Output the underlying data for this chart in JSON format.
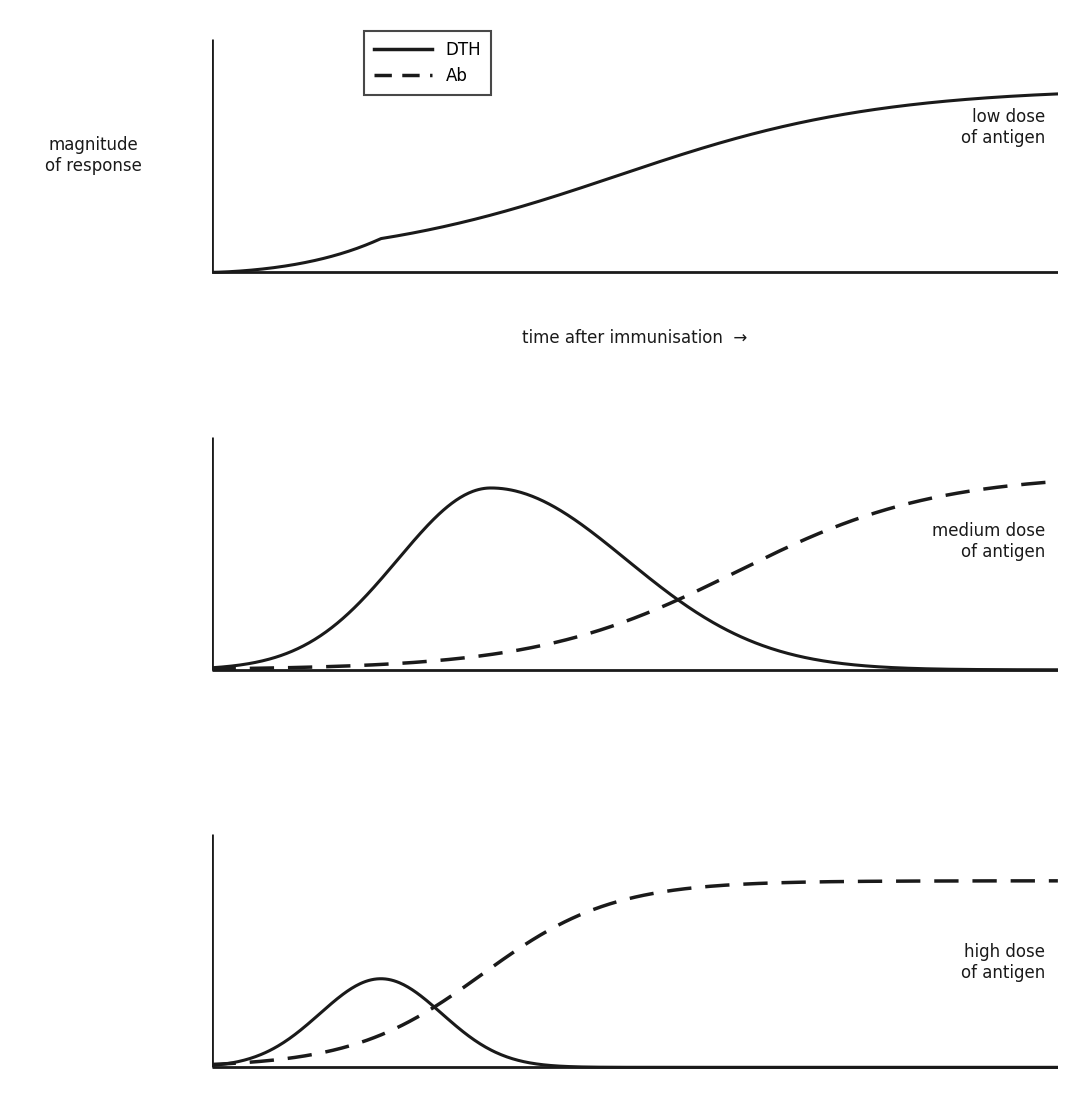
{
  "background_color": "#ffffff",
  "label_fontsize": 12,
  "annotation_fontsize": 12,
  "legend_fontsize": 12,
  "line_color": "#1a1a1a",
  "lw": 2.2,
  "panel1": {
    "label": "low dose\nof antigen"
  },
  "panel2": {
    "label": "medium dose\nof antigen"
  },
  "panel3": {
    "label": "high dose\nof antigen"
  },
  "legend_labels": [
    "DTH",
    "Ab"
  ],
  "ylabel": "magnitude\nof response",
  "xlabel": "time after immunisation  →"
}
